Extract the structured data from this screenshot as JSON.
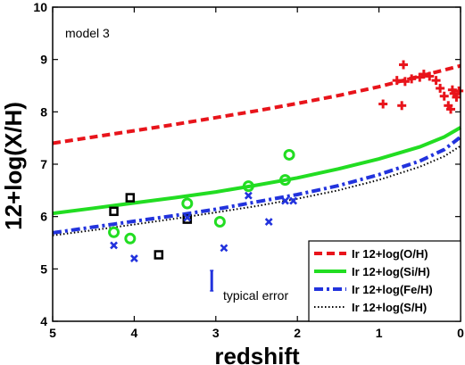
{
  "chart_data": {
    "type": "line",
    "annotation": "model 3",
    "xlabel": "redshift",
    "ylabel": "12+log(X/H)",
    "xlim": [
      5,
      0
    ],
    "ylim": [
      4,
      10
    ],
    "x_reversed": true,
    "xticks": [
      5,
      4,
      3,
      2,
      1,
      0
    ],
    "yticks": [
      4,
      5,
      6,
      7,
      8,
      9,
      10
    ],
    "grid": false,
    "legend_position": "bottom-right",
    "series": [
      {
        "name": "Ir 12+log(O/H)",
        "color": "#e8141b",
        "style": "dashed",
        "x": [
          5,
          4.5,
          4,
          3.5,
          3,
          2.5,
          2,
          1.5,
          1,
          0.5,
          0.2,
          0
        ],
        "y": [
          7.4,
          7.52,
          7.64,
          7.76,
          7.89,
          8.02,
          8.16,
          8.31,
          8.48,
          8.68,
          8.8,
          8.88
        ]
      },
      {
        "name": "Ir 12+log(Si/H)",
        "color": "#22dd22",
        "style": "solid",
        "x": [
          5,
          4.5,
          4,
          3.5,
          3,
          2.5,
          2,
          1.5,
          1,
          0.5,
          0.2,
          0
        ],
        "y": [
          6.06,
          6.16,
          6.26,
          6.36,
          6.47,
          6.6,
          6.74,
          6.91,
          7.1,
          7.33,
          7.52,
          7.7
        ]
      },
      {
        "name": "Ir 12+log(Fe/H)",
        "color": "#2233dd",
        "style": "dashdot",
        "x": [
          5,
          4.5,
          4,
          3.5,
          3,
          2.5,
          2,
          1.5,
          1,
          0.5,
          0.2,
          0
        ],
        "y": [
          5.69,
          5.8,
          5.91,
          6.02,
          6.14,
          6.28,
          6.42,
          6.59,
          6.8,
          7.06,
          7.28,
          7.52
        ]
      },
      {
        "name": "Ir 12+log(S/H)",
        "color": "#000000",
        "style": "dotted",
        "x": [
          5,
          4.5,
          4,
          3.5,
          3,
          2.5,
          2,
          1.5,
          1,
          0.5,
          0.2,
          0
        ],
        "y": [
          5.64,
          5.74,
          5.85,
          5.96,
          6.08,
          6.2,
          6.34,
          6.5,
          6.7,
          6.95,
          7.15,
          7.35
        ]
      }
    ],
    "observations": [
      {
        "marker": "plus",
        "color": "#e8141b",
        "points": [
          [
            0.7,
            8.9
          ],
          [
            0.78,
            8.6
          ],
          [
            0.68,
            8.58
          ],
          [
            0.6,
            8.63
          ],
          [
            0.5,
            8.66
          ],
          [
            0.45,
            8.72
          ],
          [
            0.38,
            8.68
          ],
          [
            0.3,
            8.6
          ],
          [
            0.72,
            8.12
          ],
          [
            0.95,
            8.15
          ],
          [
            0.25,
            8.45
          ],
          [
            0.2,
            8.3
          ],
          [
            0.15,
            8.12
          ],
          [
            0.1,
            8.42
          ],
          [
            0.08,
            8.35
          ],
          [
            0.05,
            8.28
          ],
          [
            0.02,
            8.4
          ],
          [
            0.12,
            8.05
          ]
        ]
      },
      {
        "marker": "circle",
        "color": "#22dd22",
        "points": [
          [
            4.25,
            5.7
          ],
          [
            4.05,
            5.58
          ],
          [
            3.35,
            6.25
          ],
          [
            2.95,
            5.9
          ],
          [
            2.6,
            6.58
          ],
          [
            2.15,
            6.7
          ],
          [
            2.1,
            7.18
          ]
        ]
      },
      {
        "marker": "square",
        "color": "#000000",
        "points": [
          [
            4.25,
            6.1
          ],
          [
            4.05,
            6.36
          ],
          [
            3.7,
            5.27
          ],
          [
            3.35,
            5.95
          ]
        ]
      },
      {
        "marker": "x",
        "color": "#2233dd",
        "points": [
          [
            4.25,
            5.45
          ],
          [
            4.0,
            5.2
          ],
          [
            3.35,
            5.98
          ],
          [
            2.9,
            5.4
          ],
          [
            2.6,
            6.4
          ],
          [
            2.35,
            5.9
          ],
          [
            2.15,
            6.3
          ],
          [
            2.05,
            6.3
          ]
        ]
      }
    ],
    "error_bar_label": "typical error",
    "error_bar": {
      "x": 3.05,
      "y_low": 4.58,
      "y_high": 4.97,
      "color": "#2233dd"
    }
  }
}
